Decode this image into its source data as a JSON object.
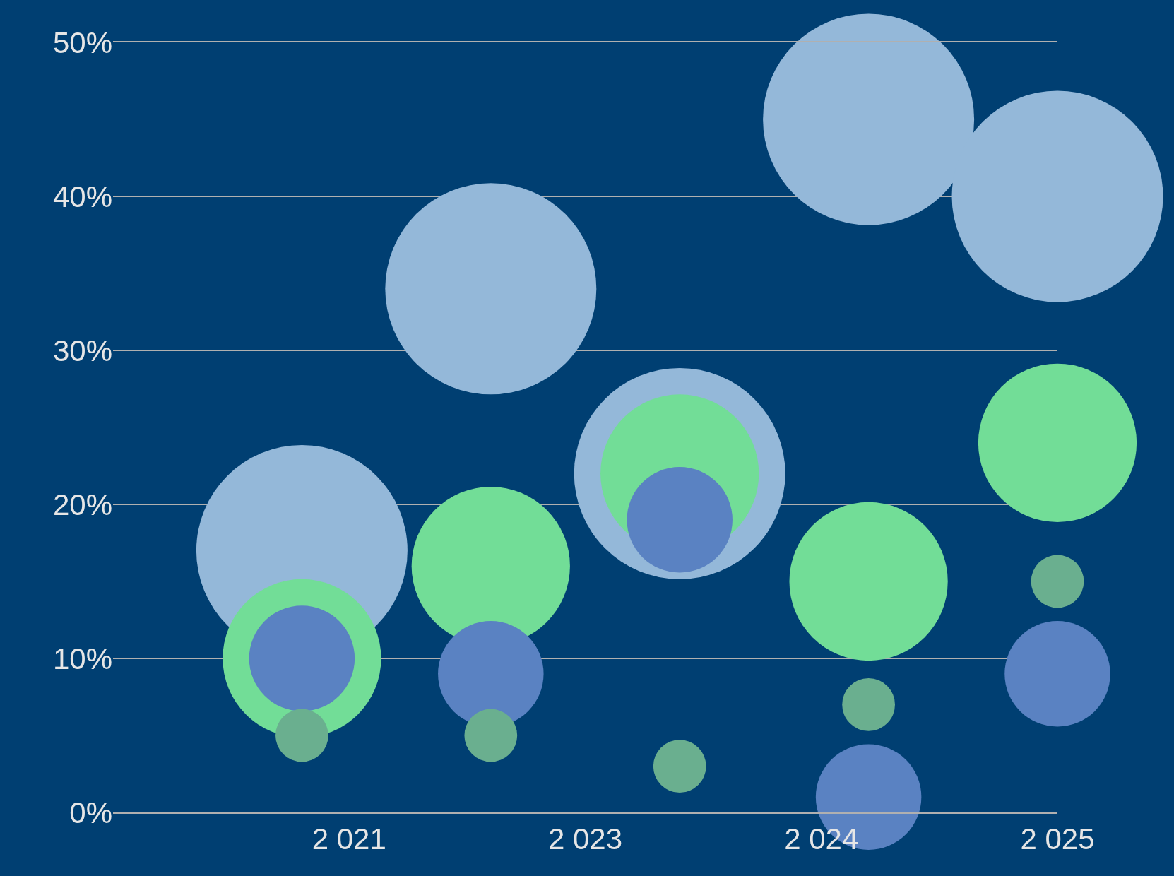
{
  "chart_data": {
    "type": "bubble",
    "x": [
      2021,
      2022,
      2023,
      2024,
      2025
    ],
    "series": [
      {
        "color": "#94b8d9",
        "values": [
          17,
          34,
          22,
          45,
          40
        ],
        "sizes": [
          1,
          1,
          1,
          1,
          1
        ]
      },
      {
        "color": "#72dd97",
        "values": [
          10,
          16,
          22,
          15,
          24
        ],
        "sizes": [
          0.5625,
          0.5625,
          0.5625,
          0.5625,
          0.5625
        ]
      },
      {
        "color": "#5a82c2",
        "values": [
          10,
          9,
          19,
          1,
          9
        ],
        "sizes": [
          0.25,
          0.25,
          0.25,
          0.25,
          0.25
        ]
      },
      {
        "color": "#6aaf8f",
        "values": [
          5,
          5,
          3,
          7,
          15
        ],
        "sizes": [
          0.0625,
          0.0625,
          0.0625,
          0.0625,
          0.0625
        ]
      }
    ],
    "xlim": [
      2020,
      2025
    ],
    "xticks": [
      {
        "value": 2021.25,
        "label": "2 021"
      },
      {
        "value": 2022.5,
        "label": "2 023"
      },
      {
        "value": 2023.75,
        "label": "2 024"
      },
      {
        "value": 2025,
        "label": "2 025"
      }
    ],
    "ylim": [
      0,
      50
    ],
    "yticks": [
      {
        "value": 0,
        "label": "0%"
      },
      {
        "value": 10,
        "label": "10%"
      },
      {
        "value": 20,
        "label": "20%"
      },
      {
        "value": 30,
        "label": "30%"
      },
      {
        "value": 40,
        "label": "40%"
      },
      {
        "value": 50,
        "label": "50%"
      }
    ],
    "grid": "y",
    "marker": "circle"
  }
}
